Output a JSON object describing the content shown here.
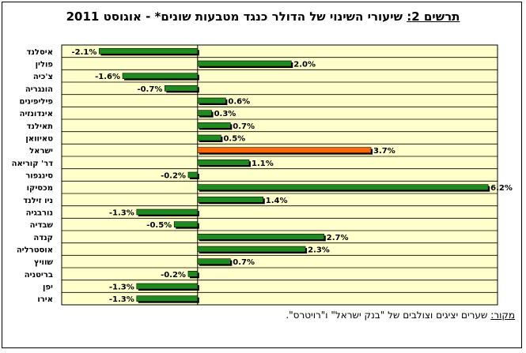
{
  "title": {
    "label": "תרשים 2:",
    "text": "שיעורי השינוי של הדולר כנגד מטבעות שונים* - אוגוסט 2011"
  },
  "source": {
    "label": "מקור:",
    "text": "שערים יציגים וצולבים של \"בנק ישראל\" ו\"רויטרס\"."
  },
  "colors": {
    "plot_bg": "#ffffcc",
    "bar": "#1f8a1f",
    "highlight_bar": "#ff6600"
  },
  "chart_data": {
    "type": "bar",
    "orientation": "horizontal",
    "categories": [
      "איסלנד",
      "פולין",
      "צ'כיה",
      "הונגריה",
      "פיליפינים",
      "אינדונזיה",
      "תאילנד",
      "טאיוואן",
      "ישראל",
      "דר' קוריאה",
      "סינגפור",
      "מכסיקו",
      "ניו זילנד",
      "נורבגיה",
      "שבדיה",
      "קנדה",
      "אוסטרליה",
      "שוויץ",
      "בריטניה",
      "יפן",
      "אירו"
    ],
    "values": [
      -2.1,
      2.0,
      -1.6,
      -0.7,
      0.6,
      0.3,
      0.7,
      0.5,
      3.7,
      1.1,
      -0.2,
      6.2,
      1.4,
      -1.3,
      -0.5,
      2.7,
      2.3,
      0.7,
      -0.2,
      -1.3,
      -1.3
    ],
    "data_labels": [
      "-2.1%",
      "2.0%",
      "-1.6%",
      "-0.7%",
      "0.6%",
      "0.3%",
      "0.7%",
      "0.5%",
      "3.7%",
      "1.1%",
      "-0.2%",
      "6.2%",
      "1.4%",
      "-1.3%",
      "-0.5%",
      "2.7%",
      "2.3%",
      "0.7%",
      "-0.2%",
      "-1.3%",
      "-1.3%"
    ],
    "highlight": "ישראל",
    "xlim": [
      -2.9,
      6.4
    ],
    "grid": "horizontal",
    "title": "שיעורי השינוי של הדולר כנגד מטבעות שונים* - אוגוסט 2011",
    "xlabel": "",
    "ylabel": ""
  }
}
